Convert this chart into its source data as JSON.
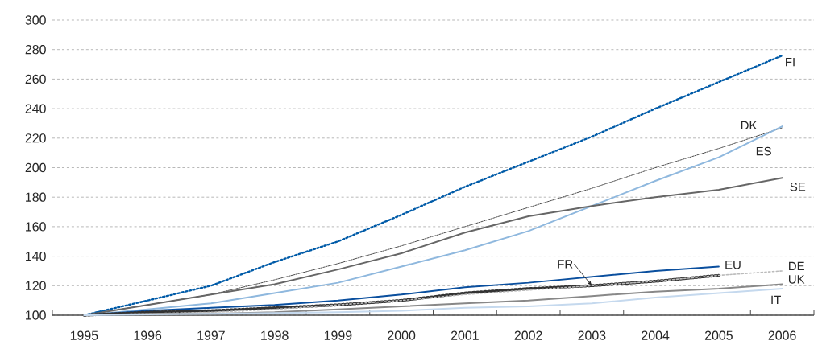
{
  "chart_data": {
    "type": "line",
    "x": [
      1995,
      1996,
      1997,
      1998,
      1999,
      2000,
      2001,
      2002,
      2003,
      2004,
      2005,
      2006
    ],
    "xlim": [
      1994.5,
      2006.5
    ],
    "xticks": [
      1995,
      1996,
      1997,
      1998,
      1999,
      2000,
      2001,
      2002,
      2003,
      2004,
      2005,
      2006,
      {
        "value": 1994.5,
        "label": null
      },
      {
        "value": 1996.5,
        "label": null
      },
      {
        "value": 1997.5,
        "label": null
      },
      {
        "value": 1998.5,
        "label": null
      },
      {
        "value": 1999.5,
        "label": null
      },
      {
        "value": 2000.5,
        "label": null
      },
      {
        "value": 2001.5,
        "label": null
      },
      {
        "value": 2002.5,
        "label": null
      },
      {
        "value": 2003.5,
        "label": null
      },
      {
        "value": 2004.5,
        "label": null
      },
      {
        "value": 2005.5,
        "label": null
      },
      {
        "value": 2006.5,
        "label": null
      }
    ],
    "ylim": [
      100,
      300
    ],
    "yticks": [
      100,
      120,
      140,
      160,
      180,
      200,
      220,
      240,
      260,
      280,
      300
    ],
    "grid": "y",
    "series": [
      {
        "name": "FI",
        "color": "#005ba8",
        "line_style": "dotted",
        "values": [
          100,
          110,
          120,
          136,
          150,
          168,
          187,
          204,
          221,
          240,
          258,
          276
        ]
      },
      {
        "name": "DK",
        "color": "#222222",
        "line_style": "dashed",
        "values": [
          100,
          107,
          114,
          124,
          135,
          147,
          160,
          173,
          186,
          200,
          213,
          227
        ]
      },
      {
        "name": "ES",
        "color": "#8fb8de",
        "line_style": "solid",
        "values": [
          100,
          104,
          108,
          115,
          122,
          133,
          144,
          157,
          174,
          191,
          207,
          228
        ]
      },
      {
        "name": "SE",
        "color": "#666666",
        "line_style": "solid",
        "values": [
          100,
          107,
          114,
          121,
          131,
          142,
          156,
          167,
          174,
          180,
          185,
          193
        ]
      },
      {
        "name": "EU",
        "color": "#0a4f9e",
        "line_style": "solid",
        "values": [
          100,
          103,
          105,
          107,
          110,
          114,
          119,
          122,
          126,
          130,
          133,
          null
        ]
      },
      {
        "name": "FR",
        "color": "#333333",
        "line_style": "dotted",
        "values": [
          100,
          102,
          103,
          105,
          107,
          110,
          115,
          118,
          120,
          123,
          127,
          null
        ]
      },
      {
        "name": "DE",
        "color": "#bbbbbb",
        "line_style": "dotted",
        "values": [
          100,
          101,
          102,
          104,
          107,
          110,
          114,
          117,
          120,
          123,
          127,
          130
        ]
      },
      {
        "name": "UK",
        "color": "#888888",
        "line_style": "solid",
        "values": [
          100,
          101,
          101,
          102,
          104,
          106,
          108,
          110,
          113,
          116,
          118,
          121
        ]
      },
      {
        "name": "IT",
        "color": "#c5d9ee",
        "line_style": "solid",
        "values": [
          100,
          100.5,
          101,
          101.5,
          102,
          103,
          105,
          106,
          108,
          112,
          115,
          118
        ]
      }
    ]
  }
}
